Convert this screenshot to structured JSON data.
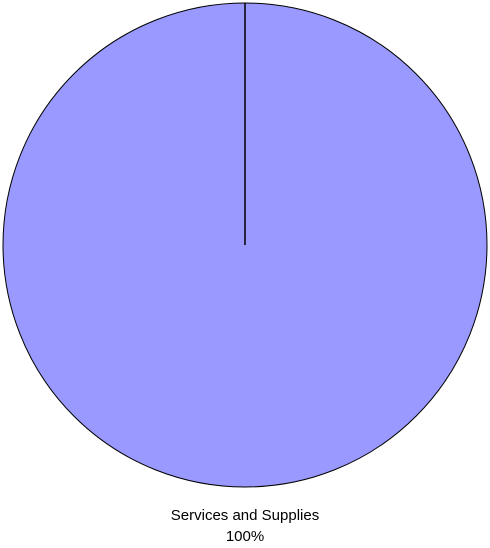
{
  "chart_data": {
    "type": "pie",
    "slices": [
      {
        "label": "Services and Supplies",
        "value": 100,
        "percent_label": "100%",
        "color": "#9999ff"
      }
    ],
    "title": "",
    "legend": "none"
  },
  "colors": {
    "background": "#ffffff",
    "outline": "#000000"
  }
}
